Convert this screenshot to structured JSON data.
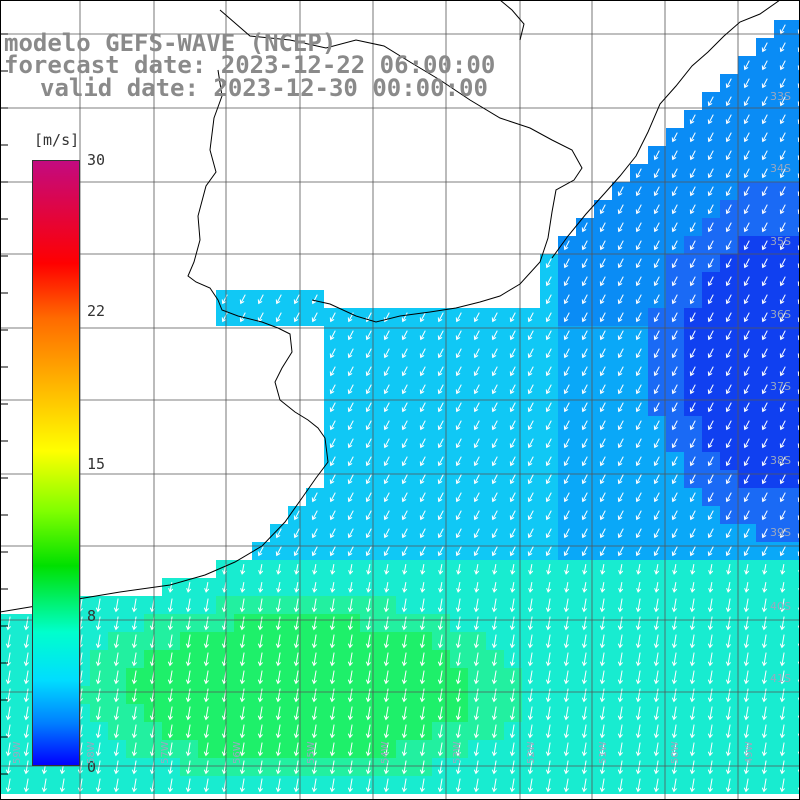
{
  "title": {
    "line1": "modelo GEFS-WAVE (NCEP)",
    "line2": "forecast date: 2023-12-22 06:00:00",
    "line3": "valid date: 2023-12-30 00:00:00"
  },
  "colorbar": {
    "unit": "[m/s]",
    "ticks": [
      "30",
      "22",
      "15",
      "8",
      "0"
    ],
    "tick_values": [
      30,
      22,
      15,
      8,
      0
    ]
  },
  "latitude_labels": [
    "33S",
    "34S",
    "35S",
    "36S",
    "37S",
    "38S",
    "39S",
    "40S",
    "41S"
  ],
  "longitude_labels": [
    "59W",
    "58W",
    "57W",
    "56W",
    "55W",
    "54W",
    "53W",
    "52W",
    "51W",
    "50W",
    "49W"
  ],
  "colors": {
    "land": "#ffffff",
    "grid": "#555555",
    "coast": "#000000",
    "arrow": "#ffffff",
    "title": "#8a8a8a"
  }
}
